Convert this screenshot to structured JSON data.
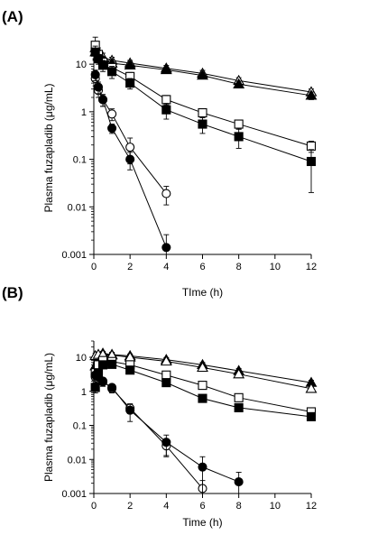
{
  "chart_data": [
    {
      "type": "line",
      "panel_label": "(A)",
      "xlabel": "TIme (h)",
      "ylabel": "Plasma fuzapladib (μg/mL)",
      "xlim": [
        0,
        12
      ],
      "ylim": [
        0.001,
        30
      ],
      "y_scale": "log",
      "x_ticks": [
        "0",
        "2",
        "4",
        "6",
        "8",
        "10",
        "12"
      ],
      "y_ticks": [
        "0.001",
        "0.01",
        "0.1",
        "1",
        "10"
      ],
      "grid": false,
      "legend": "none",
      "series": [
        {
          "marker": "open-triangle",
          "x": [
            0.083,
            0.25,
            0.5,
            1,
            2,
            4,
            6,
            8,
            12
          ],
          "y": [
            22,
            18,
            14,
            12,
            10.5,
            8.2,
            6.4,
            4.5,
            2.6
          ],
          "err": [
            6,
            4,
            3,
            2,
            1.5,
            1.2,
            1,
            0.7,
            0.4
          ]
        },
        {
          "marker": "filled-triangle",
          "x": [
            0.083,
            0.25,
            0.5,
            1,
            2,
            4,
            6,
            8,
            12
          ],
          "y": [
            18,
            15,
            12,
            10.5,
            9.5,
            7.6,
            5.8,
            3.8,
            2.2
          ],
          "err": [
            5,
            3,
            2.5,
            2,
            1.5,
            1.1,
            0.9,
            0.6,
            0.4
          ]
        },
        {
          "marker": "open-square",
          "x": [
            0.083,
            0.25,
            0.5,
            1,
            2,
            4,
            6,
            8,
            12
          ],
          "y": [
            25,
            16,
            11,
            8.5,
            5.5,
            1.8,
            0.95,
            0.55,
            0.19
          ],
          "err": [
            12,
            4,
            3,
            2,
            1.2,
            0.4,
            0.2,
            0.12,
            0.05
          ]
        },
        {
          "marker": "filled-square",
          "x": [
            0.083,
            0.25,
            0.5,
            1,
            2,
            4,
            6,
            8,
            12
          ],
          "y": [
            18,
            13,
            9.5,
            7,
            4,
            1.1,
            0.55,
            0.3,
            0.09
          ],
          "err": [
            6,
            3,
            2.5,
            2,
            1,
            0.4,
            0.2,
            0.13,
            0.07
          ]
        },
        {
          "marker": "open-circle",
          "x": [
            0.083,
            0.25,
            0.5,
            1,
            2,
            4
          ],
          "y": [
            5,
            2.8,
            1.8,
            0.9,
            0.18,
            0.019
          ],
          "err": [
            1.5,
            0.8,
            0.5,
            0.25,
            0.1,
            0.008
          ]
        },
        {
          "marker": "filled-circle",
          "x": [
            0.083,
            0.25,
            0.5,
            1,
            2,
            4
          ],
          "y": [
            6,
            3.3,
            1.8,
            0.45,
            0.1,
            0.0014
          ],
          "err": [
            1.5,
            0.9,
            0.5,
            0.1,
            0.04,
            0.0012
          ]
        }
      ]
    },
    {
      "type": "line",
      "panel_label": "(B)",
      "xlabel": "Time (h)",
      "ylabel": "Plasma fuzapladib (μg/mL)",
      "xlim": [
        0,
        12
      ],
      "ylim": [
        0.001,
        30
      ],
      "y_scale": "log",
      "x_ticks": [
        "0",
        "2",
        "4",
        "6",
        "8",
        "10",
        "12"
      ],
      "y_ticks": [
        "0.001",
        "0.01",
        "0.1",
        "1",
        "10"
      ],
      "grid": false,
      "legend": "none",
      "series": [
        {
          "marker": "filled-triangle",
          "x": [
            0.083,
            0.25,
            0.5,
            1,
            2,
            4,
            6,
            8,
            12
          ],
          "y": [
            5.5,
            9,
            13,
            12,
            11,
            8.5,
            6,
            4,
            1.8
          ],
          "err": [
            1,
            2,
            2,
            2,
            1.5,
            1.3,
            1,
            0.7,
            0.3
          ]
        },
        {
          "marker": "open-triangle",
          "x": [
            0.083,
            0.25,
            0.5,
            1,
            2,
            4,
            6,
            8,
            12
          ],
          "y": [
            11,
            12,
            12,
            11.5,
            10,
            7.6,
            5,
            3.2,
            1.2
          ],
          "err": [
            2,
            2,
            2,
            1.8,
            1.5,
            1.1,
            0.9,
            0.5,
            0.2
          ]
        },
        {
          "marker": "open-square",
          "x": [
            0.083,
            0.25,
            0.5,
            1,
            2,
            4,
            6,
            8,
            12
          ],
          "y": [
            3.5,
            6,
            8,
            7.5,
            6,
            3,
            1.5,
            0.65,
            0.25
          ],
          "err": [
            0.8,
            1,
            1.5,
            1.2,
            1,
            0.5,
            0.3,
            0.1,
            0.04
          ]
        },
        {
          "marker": "filled-square",
          "x": [
            0.083,
            0.25,
            0.5,
            1,
            2,
            4,
            6,
            8,
            12
          ],
          "y": [
            1.3,
            3.5,
            6,
            6.2,
            4.2,
            1.8,
            0.62,
            0.33,
            0.18
          ],
          "err": [
            0.4,
            0.8,
            1,
            1.2,
            0.8,
            0.3,
            0.12,
            0.06,
            0.03
          ]
        },
        {
          "marker": "open-circle",
          "x": [
            0.083,
            0.25,
            0.5,
            1,
            2,
            4,
            6
          ],
          "y": [
            2.6,
            2.3,
            2,
            1.2,
            0.32,
            0.025,
            0.0014
          ],
          "err": [
            0.8,
            0.6,
            0.5,
            0.3,
            0.1,
            0.012,
            0.001
          ]
        },
        {
          "marker": "filled-circle",
          "x": [
            0.083,
            0.25,
            0.5,
            1,
            2,
            4,
            6,
            8
          ],
          "y": [
            3,
            2.6,
            1.9,
            1.3,
            0.28,
            0.032,
            0.006,
            0.0022
          ],
          "err": [
            0.8,
            0.7,
            0.5,
            0.3,
            0.15,
            0.02,
            0.006,
            0.002
          ]
        }
      ]
    }
  ]
}
